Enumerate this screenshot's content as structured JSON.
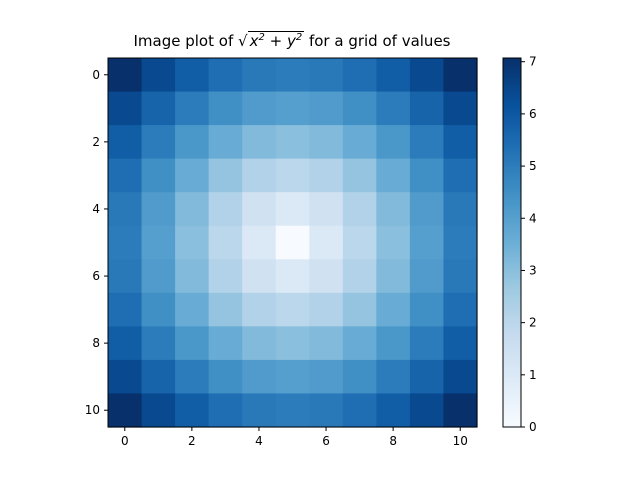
{
  "chart_data": {
    "type": "heatmap",
    "title_prefix": "Image plot of ",
    "title_suffix": " for a grid of values",
    "title_formula": {
      "radical": "√",
      "expr_x": "x",
      "expr_sep": " + ",
      "expr_y": "y",
      "power": "2"
    },
    "xlabel": "",
    "ylabel": "",
    "x_ticks": [
      0,
      2,
      4,
      6,
      8,
      10
    ],
    "y_ticks": [
      0,
      2,
      4,
      6,
      8,
      10
    ],
    "xlim": [
      -0.5,
      10.5
    ],
    "ylim": [
      10.5,
      -0.5
    ],
    "grid_size": 11,
    "colormap": "Blues",
    "color_scale": [
      {
        "t": 0.0,
        "hex": "#f7fbff"
      },
      {
        "t": 0.125,
        "hex": "#deebf7"
      },
      {
        "t": 0.25,
        "hex": "#c6dbef"
      },
      {
        "t": 0.375,
        "hex": "#9ecae1"
      },
      {
        "t": 0.5,
        "hex": "#6baed6"
      },
      {
        "t": 0.625,
        "hex": "#4292c6"
      },
      {
        "t": 0.75,
        "hex": "#2171b5"
      },
      {
        "t": 0.875,
        "hex": "#08519c"
      },
      {
        "t": 1.0,
        "hex": "#08306b"
      }
    ],
    "colorbar": {
      "min": 0,
      "max": 7.0711,
      "ticks": [
        0,
        1,
        2,
        3,
        4,
        5,
        6,
        7
      ]
    },
    "values": [
      [
        7.07,
        6.4,
        5.83,
        5.39,
        5.1,
        5.0,
        5.1,
        5.39,
        5.83,
        6.4,
        7.07
      ],
      [
        6.4,
        5.66,
        5.0,
        4.47,
        4.12,
        4.0,
        4.12,
        4.47,
        5.0,
        5.66,
        6.4
      ],
      [
        5.83,
        5.0,
        4.24,
        3.61,
        3.16,
        3.0,
        3.16,
        3.61,
        4.24,
        5.0,
        5.83
      ],
      [
        5.39,
        4.47,
        3.61,
        2.83,
        2.24,
        2.0,
        2.24,
        2.83,
        3.61,
        4.47,
        5.39
      ],
      [
        5.1,
        4.12,
        3.16,
        2.24,
        1.41,
        1.0,
        1.41,
        2.24,
        3.16,
        4.12,
        5.1
      ],
      [
        5.0,
        4.0,
        3.0,
        2.0,
        1.0,
        0.0,
        1.0,
        2.0,
        3.0,
        4.0,
        5.0
      ],
      [
        5.1,
        4.12,
        3.16,
        2.24,
        1.41,
        1.0,
        1.41,
        2.24,
        3.16,
        4.12,
        5.1
      ],
      [
        5.39,
        4.47,
        3.61,
        2.83,
        2.24,
        2.0,
        2.24,
        2.83,
        3.61,
        4.47,
        5.39
      ],
      [
        5.83,
        5.0,
        4.24,
        3.61,
        3.16,
        3.0,
        3.16,
        3.61,
        4.24,
        5.0,
        5.83
      ],
      [
        6.4,
        5.66,
        5.0,
        4.47,
        4.12,
        4.0,
        4.12,
        4.47,
        5.0,
        5.66,
        6.4
      ],
      [
        7.07,
        6.4,
        5.83,
        5.39,
        5.1,
        5.0,
        5.1,
        5.39,
        5.83,
        6.4,
        7.07
      ]
    ]
  }
}
